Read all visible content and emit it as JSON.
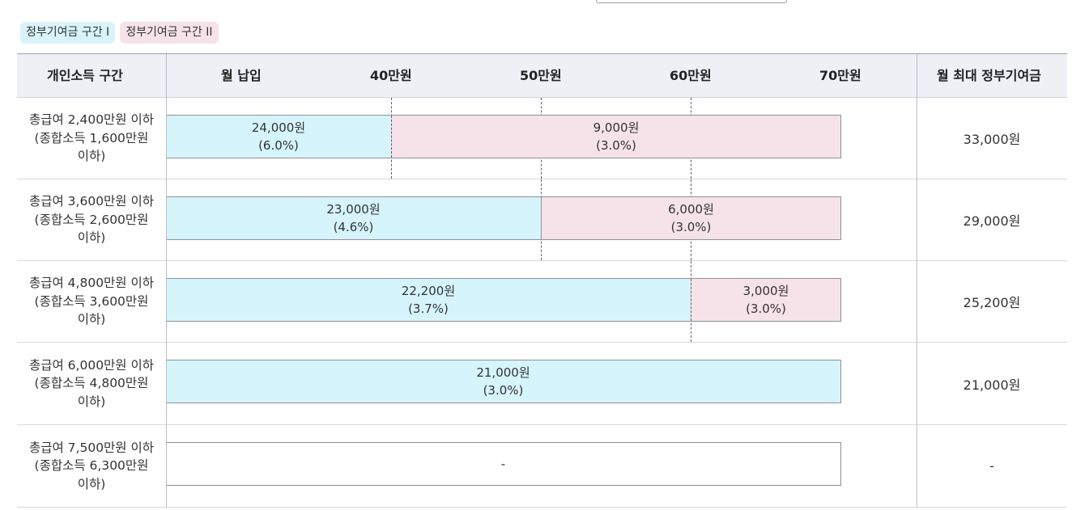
{
  "legend": {
    "tier1": "정부기여금 구간 I",
    "tier2": "정부기여금 구간 II"
  },
  "header": {
    "income_range": "개인소득 구간",
    "monthly_payment": "월 납입",
    "tick_40": "40만원",
    "tick_50": "50만원",
    "tick_60": "60만원",
    "tick_70": "70만원",
    "max_contribution": "월 최대 정부기여금"
  },
  "colors": {
    "tier1": "#d6f4fc",
    "tier2": "#f6e3ea",
    "header_bg": "#eef0f6"
  },
  "rows": [
    {
      "income_line1": "총급여 2,400만원 이하",
      "income_line2": "(종합소득 1,600만원",
      "income_line3": "이하)",
      "tier1_amount": "24,000원",
      "tier1_rate": "(6.0%)",
      "tier2_amount": "9,000원",
      "tier2_rate": "(3.0%)",
      "max": "33,000원"
    },
    {
      "income_line1": "총급여 3,600만원 이하",
      "income_line2": "(종합소득 2,600만원",
      "income_line3": "이하)",
      "tier1_amount": "23,000원",
      "tier1_rate": "(4.6%)",
      "tier2_amount": "6,000원",
      "tier2_rate": "(3.0%)",
      "max": "29,000원"
    },
    {
      "income_line1": "총급여 4,800만원 이하",
      "income_line2": "(종합소득 3,600만원",
      "income_line3": "이하)",
      "tier1_amount": "22,200원",
      "tier1_rate": "(3.7%)",
      "tier2_amount": "3,000원",
      "tier2_rate": "(3.0%)",
      "max": "25,200원"
    },
    {
      "income_line1": "총급여 6,000만원 이하",
      "income_line2": "(종합소득 4,800만원",
      "income_line3": "이하)",
      "tier1_amount": "21,000원",
      "tier1_rate": "(3.0%)",
      "max": "21,000원"
    },
    {
      "income_line1": "총급여 7,500만원 이하",
      "income_line2": "(종합소득 6,300만원",
      "income_line3": "이하)",
      "none": "-",
      "max": "-"
    }
  ]
}
